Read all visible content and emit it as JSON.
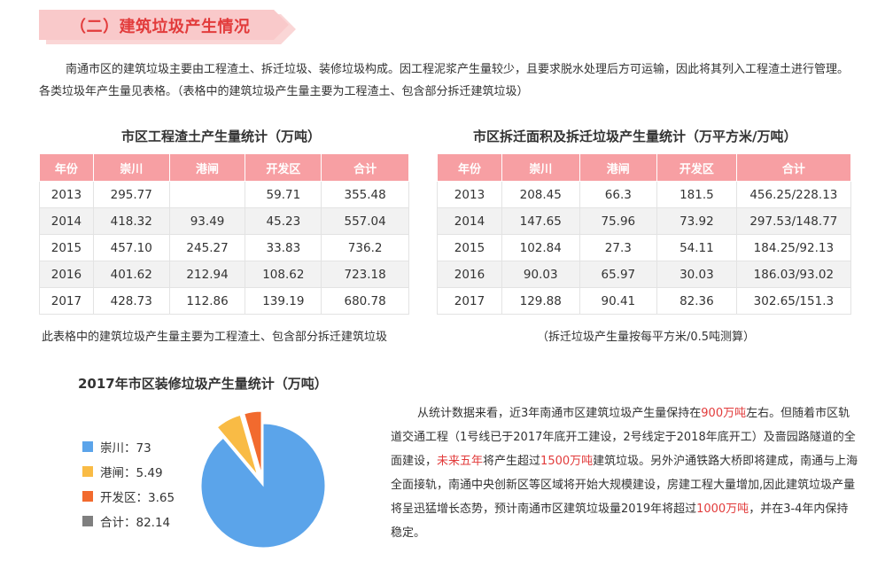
{
  "section": {
    "title": "（二）建筑垃圾产生情况"
  },
  "intro": "南通市区的建筑垃圾主要由工程渣土、拆迁垃圾、装修垃圾构成。因工程泥浆产生量较少，且要求脱水处理后方可运输，因此将其列入工程渣土进行管理。各类垃圾年产生量见表格。（表格中的建筑垃圾产生量主要为工程渣土、包含部分拆迁建筑垃圾）",
  "table1": {
    "title": "市区工程渣土产生量统计（万吨）",
    "headers": [
      "年份",
      "崇川",
      "港闸",
      "开发区",
      "合计"
    ],
    "rows": [
      [
        "2013",
        "295.77",
        "",
        "59.71",
        "355.48"
      ],
      [
        "2014",
        "418.32",
        "93.49",
        "45.23",
        "557.04"
      ],
      [
        "2015",
        "457.10",
        "245.27",
        "33.83",
        "736.2"
      ],
      [
        "2016",
        "401.62",
        "212.94",
        "108.62",
        "723.18"
      ],
      [
        "2017",
        "428.73",
        "112.86",
        "139.19",
        "680.78"
      ]
    ],
    "note": "此表格中的建筑垃圾产生量主要为工程渣土、包含部分拆迁建筑垃圾"
  },
  "table2": {
    "title": "市区拆迁面积及拆迁垃圾产生量统计（万平方米/万吨）",
    "headers": [
      "年份",
      "崇川",
      "港闸",
      "开发区",
      "合计"
    ],
    "rows": [
      [
        "2013",
        "208.45",
        "66.3",
        "181.5",
        "456.25/228.13"
      ],
      [
        "2014",
        "147.65",
        "75.96",
        "73.92",
        "297.53/148.77"
      ],
      [
        "2015",
        "102.84",
        "27.3",
        "54.11",
        "184.25/92.13"
      ],
      [
        "2016",
        "90.03",
        "65.97",
        "30.03",
        "186.03/93.02"
      ],
      [
        "2017",
        "129.88",
        "90.41",
        "82.36",
        "302.65/151.3"
      ]
    ],
    "note": "（拆迁垃圾产生量按每平方米/0.5吨测算）"
  },
  "chart_data": {
    "type": "pie",
    "title": "2017年市区装修垃圾产生量统计（万吨）",
    "slices": [
      {
        "name": "崇川",
        "value": 73,
        "color": "#5ba4ea",
        "label": "崇川：73"
      },
      {
        "name": "港闸",
        "value": 5.49,
        "color": "#f9bb45",
        "label": "港闸：5.49"
      },
      {
        "name": "开发区",
        "value": 3.65,
        "color": "#f26a2e",
        "label": "开发区：3.65"
      },
      {
        "name": "合计",
        "value": 82.14,
        "color": "#7f7f7f",
        "label": "合计：82.14",
        "in_pie": false
      }
    ]
  },
  "summary": [
    {
      "text": "从统计数据来看，近3年南通市区建筑垃圾产生量保持在"
    },
    {
      "text": "900万吨",
      "hl": true
    },
    {
      "text": "左右。但随着市区轨道交通工程（1号线已于2017年底开工建设，2号线定于2018年底开工）及啬园路隧道的全面建设，"
    },
    {
      "text": "未来五年",
      "hl": true
    },
    {
      "text": "将产生超过"
    },
    {
      "text": "1500万吨",
      "hl": true
    },
    {
      "text": "建筑垃圾。另外沪通铁路大桥即将建成，南通与上海全面接轨，南通中央创新区等区域将开始大规模建设，房建工程大量增加,因此建筑垃圾产量将呈迅猛增长态势，预计南通市区建筑垃圾量2019年将超过"
    },
    {
      "text": "1000万吨",
      "hl": true
    },
    {
      "text": "，并在3-4年内保持稳定。"
    }
  ],
  "colors": {
    "accent": "#e23b3b",
    "header": "#f79fa3",
    "banner": "#f9c9ca"
  }
}
